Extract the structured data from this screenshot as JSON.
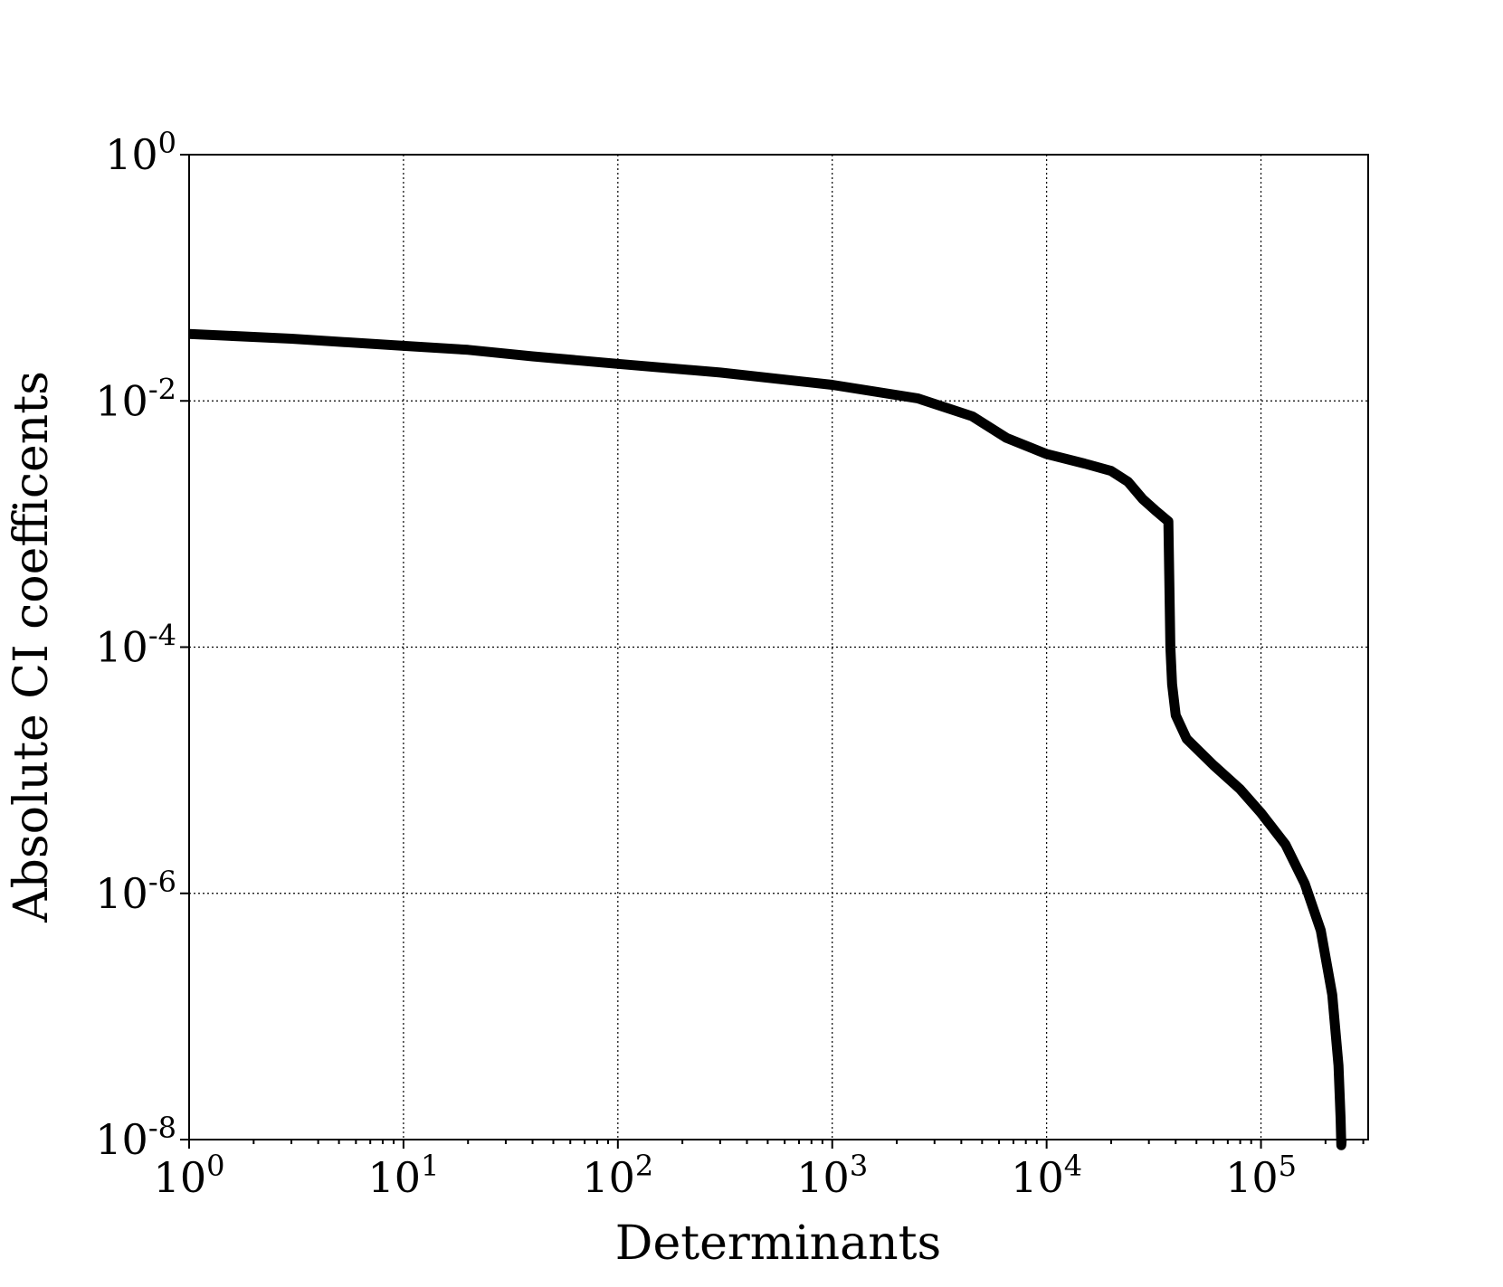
{
  "chart_data": {
    "type": "line",
    "title": "",
    "xlabel": "Determinants",
    "ylabel": "Absolute CI coefficents",
    "xscale": "log",
    "yscale": "log",
    "xlim": [
      1,
      316228
    ],
    "ylim": [
      1e-08,
      1
    ],
    "grid": true,
    "x_ticks": [
      {
        "base": "10",
        "exp": "0",
        "value": 1
      },
      {
        "base": "10",
        "exp": "1",
        "value": 10
      },
      {
        "base": "10",
        "exp": "2",
        "value": 100
      },
      {
        "base": "10",
        "exp": "3",
        "value": 1000
      },
      {
        "base": "10",
        "exp": "4",
        "value": 10000
      },
      {
        "base": "10",
        "exp": "5",
        "value": 100000
      }
    ],
    "y_ticks": [
      {
        "base": "10",
        "exp": "0",
        "value": 1
      },
      {
        "base": "10",
        "exp": "-2",
        "value": 0.01
      },
      {
        "base": "10",
        "exp": "-4",
        "value": 0.0001
      },
      {
        "base": "10",
        "exp": "-6",
        "value": 1e-06
      },
      {
        "base": "10",
        "exp": "-8",
        "value": 1e-08
      }
    ],
    "series": [
      {
        "color": "#000000",
        "x": [
          1,
          3,
          10,
          20,
          40,
          100,
          300,
          1000,
          2500,
          4500,
          6500,
          10000,
          15000,
          20000,
          24000,
          28000,
          32000,
          37000,
          37800,
          38500,
          40000,
          45000,
          60000,
          80000,
          100000,
          130000,
          160000,
          190000,
          215000,
          230000,
          235000,
          237000,
          238000
        ],
        "y": [
          0.035,
          0.032,
          0.028,
          0.026,
          0.023,
          0.02,
          0.017,
          0.0135,
          0.0105,
          0.0075,
          0.005,
          0.0037,
          0.0031,
          0.0027,
          0.0022,
          0.0016,
          0.0013,
          0.00105,
          0.0001,
          5e-05,
          2.8e-05,
          1.8e-05,
          1.1e-05,
          7e-06,
          4.5e-06,
          2.5e-06,
          1.2e-06,
          5e-07,
          1.5e-07,
          4e-08,
          1.5e-08,
          9e-09,
          1e-08
        ]
      }
    ]
  }
}
